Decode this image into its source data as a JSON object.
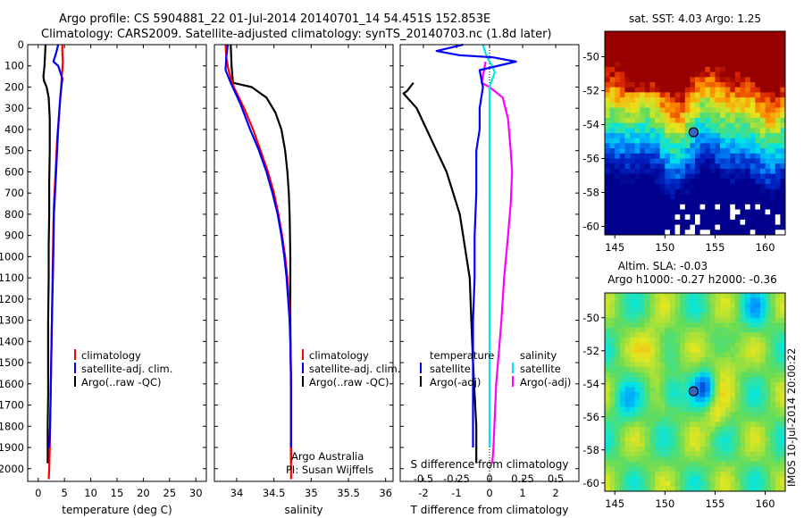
{
  "header": {
    "line1": "Argo profile: CS 5904881_22 01-Jul-2014 20140701_14 54.451S 152.853E",
    "line2": "Climatology: CARS2009. Satellite-adjusted climatology: synTS_20140703.nc (1.8d later)"
  },
  "colors": {
    "climatology": "#ff0000",
    "satellite": "#0000ff",
    "argo": "#000000",
    "satellite_salinity": "#00e5ee",
    "argo_salinity": "#ff00ff"
  },
  "chart_data": [
    {
      "type": "line",
      "panel": "temperature",
      "xlabel": "temperature (deg C)",
      "xlim": [
        -2,
        32
      ],
      "xticks": [
        "0",
        "5",
        "10",
        "15",
        "20",
        "25",
        "30"
      ],
      "ylim": [
        2060,
        0
      ],
      "yticks": [
        "0",
        "100",
        "200",
        "300",
        "400",
        "500",
        "600",
        "700",
        "800",
        "900",
        "1000",
        "1100",
        "1200",
        "1300",
        "1400",
        "1500",
        "1600",
        "1700",
        "1800",
        "1900",
        "2000"
      ],
      "legend": [
        "climatology",
        "satellite-adj. clim.",
        "Argo(..raw -QC)"
      ],
      "series": [
        {
          "name": "climatology",
          "color": "#ff0000",
          "x": [
            4.6,
            4.6,
            4.7,
            4.5,
            4.2,
            3.9,
            3.6,
            3.4,
            3.2,
            3.0,
            2.9,
            2.8,
            2.7,
            2.6,
            2.5,
            2.4,
            2.3,
            2.2,
            2.1,
            2.0
          ],
          "y": [
            0,
            40,
            80,
            150,
            250,
            350,
            450,
            550,
            650,
            750,
            850,
            1000,
            1150,
            1300,
            1450,
            1600,
            1750,
            1900,
            2000,
            2050
          ]
        },
        {
          "name": "satellite-adj. clim.",
          "color": "#0000ff",
          "x": [
            3.8,
            3.4,
            2.9,
            3.8,
            4.6,
            4.2,
            4.0,
            3.8,
            3.6,
            3.4,
            3.2,
            3.0,
            2.9,
            2.8,
            2.6,
            2.5,
            2.4,
            2.3,
            2.2,
            2.1
          ],
          "y": [
            0,
            40,
            80,
            100,
            160,
            250,
            320,
            400,
            500,
            600,
            700,
            800,
            950,
            1100,
            1300,
            1450,
            1600,
            1750,
            1850,
            1900
          ]
        },
        {
          "name": "Argo(..raw -QC)",
          "color": "#000000",
          "x": [
            1.4,
            1.3,
            1.2,
            1.0,
            1.1,
            1.6,
            2.0,
            2.2,
            2.2,
            2.1,
            2.1,
            2.0,
            2.0,
            1.9,
            1.9,
            1.9,
            1.8,
            1.8,
            1.8
          ],
          "y": [
            0,
            50,
            100,
            150,
            170,
            200,
            250,
            350,
            500,
            650,
            800,
            950,
            1100,
            1300,
            1500,
            1650,
            1800,
            1900,
            1975
          ]
        }
      ]
    },
    {
      "type": "line",
      "panel": "salinity",
      "xlabel": "salinity",
      "xlim": [
        33.7,
        36.1
      ],
      "xticks": [
        "34",
        "34.5",
        "35",
        "35.5",
        "36"
      ],
      "legend": [
        "climatology",
        "satellite-adj. clim.",
        "Argo(..raw -QC)"
      ],
      "series": [
        {
          "name": "climatology",
          "color": "#ff0000",
          "x": [
            33.85,
            33.86,
            33.89,
            33.96,
            34.1,
            34.22,
            34.32,
            34.42,
            34.5,
            34.56,
            34.61,
            34.65,
            34.68,
            34.7,
            34.71,
            34.72,
            34.73,
            34.73,
            34.73
          ],
          "y": [
            0,
            60,
            120,
            200,
            300,
            400,
            500,
            600,
            700,
            800,
            900,
            1000,
            1100,
            1200,
            1300,
            1400,
            1600,
            1800,
            2050
          ]
        },
        {
          "name": "satellite-adj. clim.",
          "color": "#0000ff",
          "x": [
            33.88,
            33.86,
            33.85,
            33.92,
            34.05,
            34.18,
            34.3,
            34.4,
            34.48,
            34.55,
            34.6,
            34.64,
            34.67,
            34.69,
            34.71,
            34.72,
            34.73,
            34.73,
            34.73
          ],
          "y": [
            0,
            60,
            120,
            180,
            280,
            400,
            500,
            600,
            700,
            800,
            900,
            1000,
            1100,
            1200,
            1300,
            1400,
            1600,
            1800,
            1900
          ]
        },
        {
          "name": "Argo(..raw -QC)",
          "color": "#000000",
          "x": [
            33.92,
            33.93,
            33.95,
            34.2,
            34.4,
            34.52,
            34.6,
            34.65,
            34.68,
            34.7,
            34.71,
            34.72,
            34.72,
            34.73,
            34.73
          ],
          "y": [
            0,
            100,
            180,
            200,
            250,
            320,
            400,
            500,
            600,
            700,
            800,
            1000,
            1300,
            1600,
            1975
          ]
        }
      ],
      "annotation": [
        "Argo Australia",
        "PI: Susan Wijffels"
      ]
    },
    {
      "type": "line",
      "panel": "difference",
      "xlabel": "T difference from climatology",
      "xlim": [
        -2.7,
        2.7
      ],
      "xticks": [
        "-2",
        "-1",
        "0",
        "1",
        "2"
      ],
      "top_xlabel": "S difference from climatology",
      "top_xticks": [
        "-0.5",
        "-0.25",
        "0",
        "0.25",
        "0.5"
      ],
      "legend_titles": [
        "temperature",
        "salinity"
      ],
      "legend": [
        "satellite",
        "Argo(-adj)",
        "satellite",
        "Argo(-adj)"
      ],
      "series": [
        {
          "name": "satellite",
          "color": "#0000ff",
          "x": [
            -0.8,
            -1.6,
            -0.9,
            0.1,
            0.8,
            -0.3,
            -0.2,
            -0.3,
            -0.3,
            -0.4,
            -0.4,
            -0.45,
            -0.45,
            -0.5,
            -0.5,
            -0.5,
            -0.5,
            -0.5
          ],
          "y": [
            0,
            30,
            50,
            60,
            80,
            120,
            200,
            300,
            400,
            500,
            700,
            900,
            1100,
            1300,
            1500,
            1700,
            1850,
            1900
          ]
        },
        {
          "name": "Argo(-adj)",
          "color": "#000000",
          "x": [
            -2.3,
            -2.5,
            -2.6,
            -2.2,
            -1.9,
            -1.6,
            -1.3,
            -1.1,
            -0.9,
            -0.8,
            -0.7,
            -0.6,
            -0.55,
            -0.5,
            -0.45,
            -0.4,
            -0.4,
            -0.4
          ],
          "y": [
            180,
            220,
            230,
            300,
            400,
            500,
            600,
            700,
            800,
            900,
            1000,
            1100,
            1300,
            1500,
            1650,
            1800,
            1900,
            1975
          ]
        },
        {
          "name": "satellite",
          "color": "#00e5ee",
          "x": [
            -0.05,
            -0.03,
            -0.01,
            0.02,
            0.04,
            0.0,
            0.0,
            0.0,
            0.0,
            0.0,
            0.0,
            0.0
          ],
          "y": [
            0,
            40,
            70,
            100,
            130,
            200,
            400,
            700,
            1000,
            1400,
            1800,
            1900
          ]
        },
        {
          "name": "Argo(-adj)",
          "color": "#ff00ff",
          "x": [
            -0.03,
            -0.05,
            -0.06,
            0.0,
            0.1,
            0.14,
            0.16,
            0.17,
            0.16,
            0.14,
            0.11,
            0.09,
            0.07,
            0.05,
            0.04,
            0.03,
            0.02
          ],
          "y": [
            80,
            150,
            180,
            200,
            250,
            350,
            500,
            600,
            750,
            900,
            1100,
            1300,
            1450,
            1600,
            1750,
            1900,
            1975
          ]
        }
      ]
    },
    {
      "type": "heatmap",
      "panel": "sst-map",
      "title": "sat. SST: 4.03 Argo: 1.25",
      "xlim": [
        144,
        162
      ],
      "ylim": [
        -60.5,
        -48.5
      ],
      "xticks": [
        "145",
        "150",
        "155",
        "160"
      ],
      "yticks": [
        "-50",
        "-52",
        "-54",
        "-56",
        "-58",
        "-60"
      ],
      "marker": {
        "lon": 152.853,
        "lat": -54.451
      }
    },
    {
      "type": "heatmap",
      "panel": "sla-map",
      "title": [
        "Altim. SLA: -0.03",
        "Argo h1000: -0.27 h2000: -0.36"
      ],
      "xlim": [
        144,
        162
      ],
      "ylim": [
        -60.5,
        -48.5
      ],
      "xticks": [
        "145",
        "150",
        "155",
        "160"
      ],
      "yticks": [
        "-50",
        "-52",
        "-54",
        "-56",
        "-58",
        "-60"
      ],
      "marker": {
        "lon": 152.853,
        "lat": -54.451
      },
      "side_note": "IMOS 10-Jul-2014 20:00:22"
    }
  ]
}
